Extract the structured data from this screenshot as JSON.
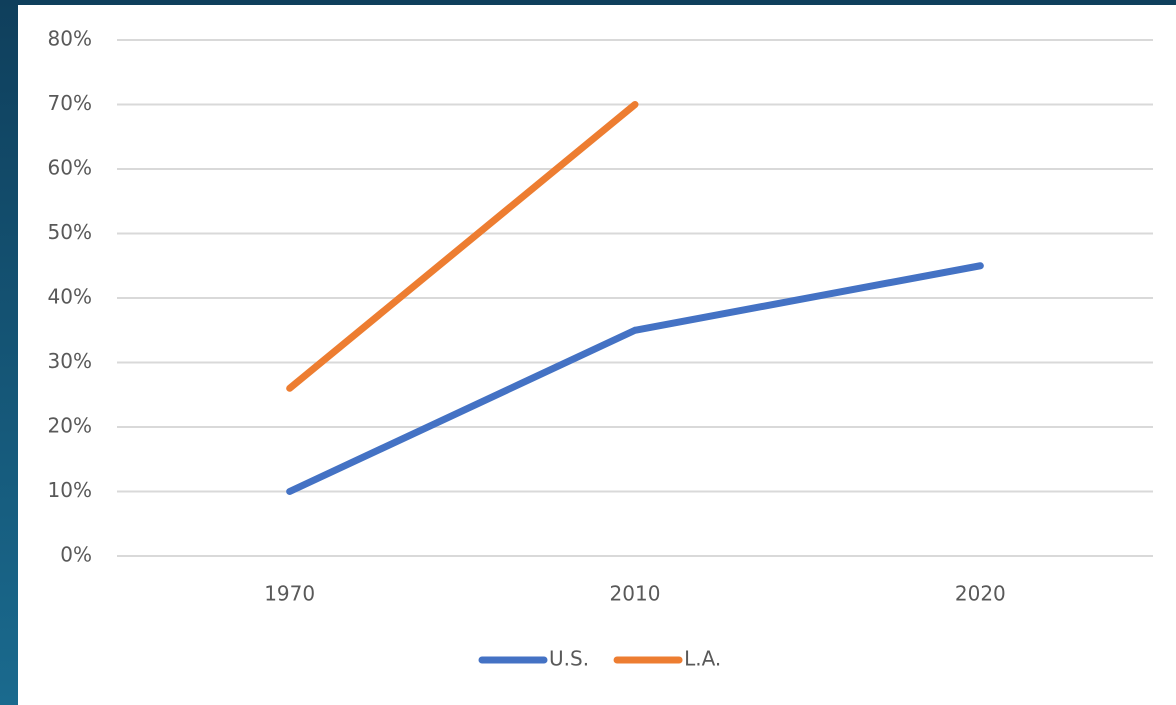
{
  "chart_data": {
    "type": "line",
    "categories": [
      "1970",
      "2010",
      "2020"
    ],
    "series": [
      {
        "name": "U.S.",
        "color": "#4472c4",
        "values": [
          10,
          35,
          45
        ]
      },
      {
        "name": "L.A.",
        "color": "#ed7d31",
        "values": [
          26,
          70,
          null
        ]
      }
    ],
    "ylim": [
      0,
      80
    ],
    "yticks": [
      {
        "value": 0,
        "label": "0%"
      },
      {
        "value": 10,
        "label": "10%"
      },
      {
        "value": 20,
        "label": "20%"
      },
      {
        "value": 30,
        "label": "30%"
      },
      {
        "value": 40,
        "label": "40%"
      },
      {
        "value": 50,
        "label": "50%"
      },
      {
        "value": 60,
        "label": "60%"
      },
      {
        "value": 70,
        "label": "70%"
      },
      {
        "value": 80,
        "label": "80%"
      }
    ],
    "grid": true,
    "legend": "bottom"
  }
}
